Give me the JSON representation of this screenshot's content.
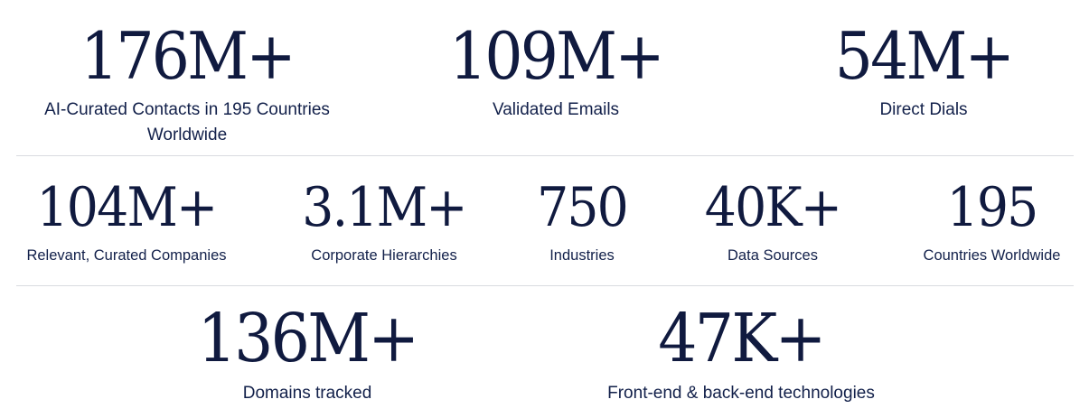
{
  "rows": [
    {
      "stats": [
        {
          "value": "176M+",
          "label": "AI-Curated Contacts in 195 Countries Worldwide"
        },
        {
          "value": "109M+",
          "label": "Validated Emails"
        },
        {
          "value": "54M+",
          "label": "Direct Dials"
        }
      ]
    },
    {
      "stats": [
        {
          "value": "104M+",
          "label": "Relevant, Curated Companies"
        },
        {
          "value": "3.1M+",
          "label": "Corporate Hierarchies"
        },
        {
          "value": "750",
          "label": "Industries"
        },
        {
          "value": "40K+",
          "label": "Data Sources"
        },
        {
          "value": "195",
          "label": "Countries Worldwide"
        }
      ]
    },
    {
      "stats": [
        {
          "value": "136M+",
          "label": "Domains tracked"
        },
        {
          "value": "47K+",
          "label": "Front-end & back-end technologies"
        }
      ]
    }
  ],
  "colors": {
    "value_text": "#101a3f",
    "label_text": "#12204a",
    "divider": "#d9dbe0",
    "background": "#ffffff"
  }
}
